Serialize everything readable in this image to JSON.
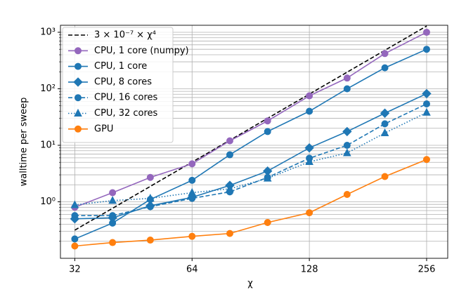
{
  "chart_data": {
    "type": "line",
    "xlabel": "χ",
    "ylabel": "walltime per sweep",
    "x": [
      32,
      40,
      50,
      64,
      80,
      100,
      128,
      160,
      200,
      256
    ],
    "xlim": [
      29.4,
      290
    ],
    "ylim": [
      0.1,
      1330
    ],
    "xscale": "log",
    "yscale": "log",
    "grid": true,
    "legend": "upper left",
    "xticks": [
      32,
      64,
      128,
      256
    ],
    "yticks": [
      {
        "value": 1,
        "label": "10⁰"
      },
      {
        "value": 10,
        "label": "10¹"
      },
      {
        "value": 100,
        "label": "10²"
      },
      {
        "value": 1000,
        "label": "10³"
      }
    ],
    "y_minor_ticks": [
      0.2,
      0.3,
      0.4,
      0.5,
      0.6,
      0.7,
      0.8,
      0.9,
      2,
      3,
      4,
      5,
      6,
      7,
      8,
      9,
      20,
      30,
      40,
      50,
      60,
      70,
      80,
      90,
      200,
      300,
      400,
      500,
      600,
      700,
      800,
      900
    ],
    "series": [
      {
        "name": "3 × 10⁻⁷ × χ⁴",
        "color": "#000000",
        "linestyle": "dashed",
        "marker": "none",
        "values": [
          0.315,
          0.768,
          1.875,
          5.03,
          12.29,
          30,
          80.5,
          196.6,
          480,
          1288
        ]
      },
      {
        "name": "CPU, 1 core (numpy)",
        "color": "#9467bd",
        "linestyle": "solid",
        "marker": "circle",
        "values": [
          0.8,
          1.45,
          2.7,
          4.7,
          12,
          27,
          75,
          155,
          420,
          1000
        ]
      },
      {
        "name": "CPU, 1 core",
        "color": "#1f77b4",
        "linestyle": "solid",
        "marker": "circle",
        "values": [
          0.22,
          0.42,
          1.1,
          2.4,
          6.8,
          17.5,
          40,
          100,
          235,
          500
        ]
      },
      {
        "name": "CPU, 8 cores",
        "color": "#1f77b4",
        "linestyle": "solid",
        "marker": "diamond",
        "values": [
          0.5,
          0.52,
          0.85,
          1.2,
          1.95,
          3.5,
          9,
          17.5,
          37,
          82
        ]
      },
      {
        "name": "CPU, 16 cores",
        "color": "#1f77b4",
        "linestyle": "dashed",
        "marker": "circle",
        "values": [
          0.57,
          0.57,
          0.82,
          1.15,
          1.5,
          2.7,
          5.9,
          10,
          24,
          54
        ]
      },
      {
        "name": "CPU, 32 cores",
        "color": "#1f77b4",
        "linestyle": "dotted",
        "marker": "triangle",
        "values": [
          0.88,
          1.05,
          1.15,
          1.45,
          1.7,
          2.6,
          5.1,
          7.3,
          16.5,
          38
        ]
      },
      {
        "name": "GPU",
        "color": "#ff7f0e",
        "linestyle": "solid",
        "marker": "circle",
        "values": [
          0.165,
          0.19,
          0.21,
          0.245,
          0.275,
          0.43,
          0.64,
          1.35,
          2.8,
          5.6
        ]
      }
    ]
  }
}
